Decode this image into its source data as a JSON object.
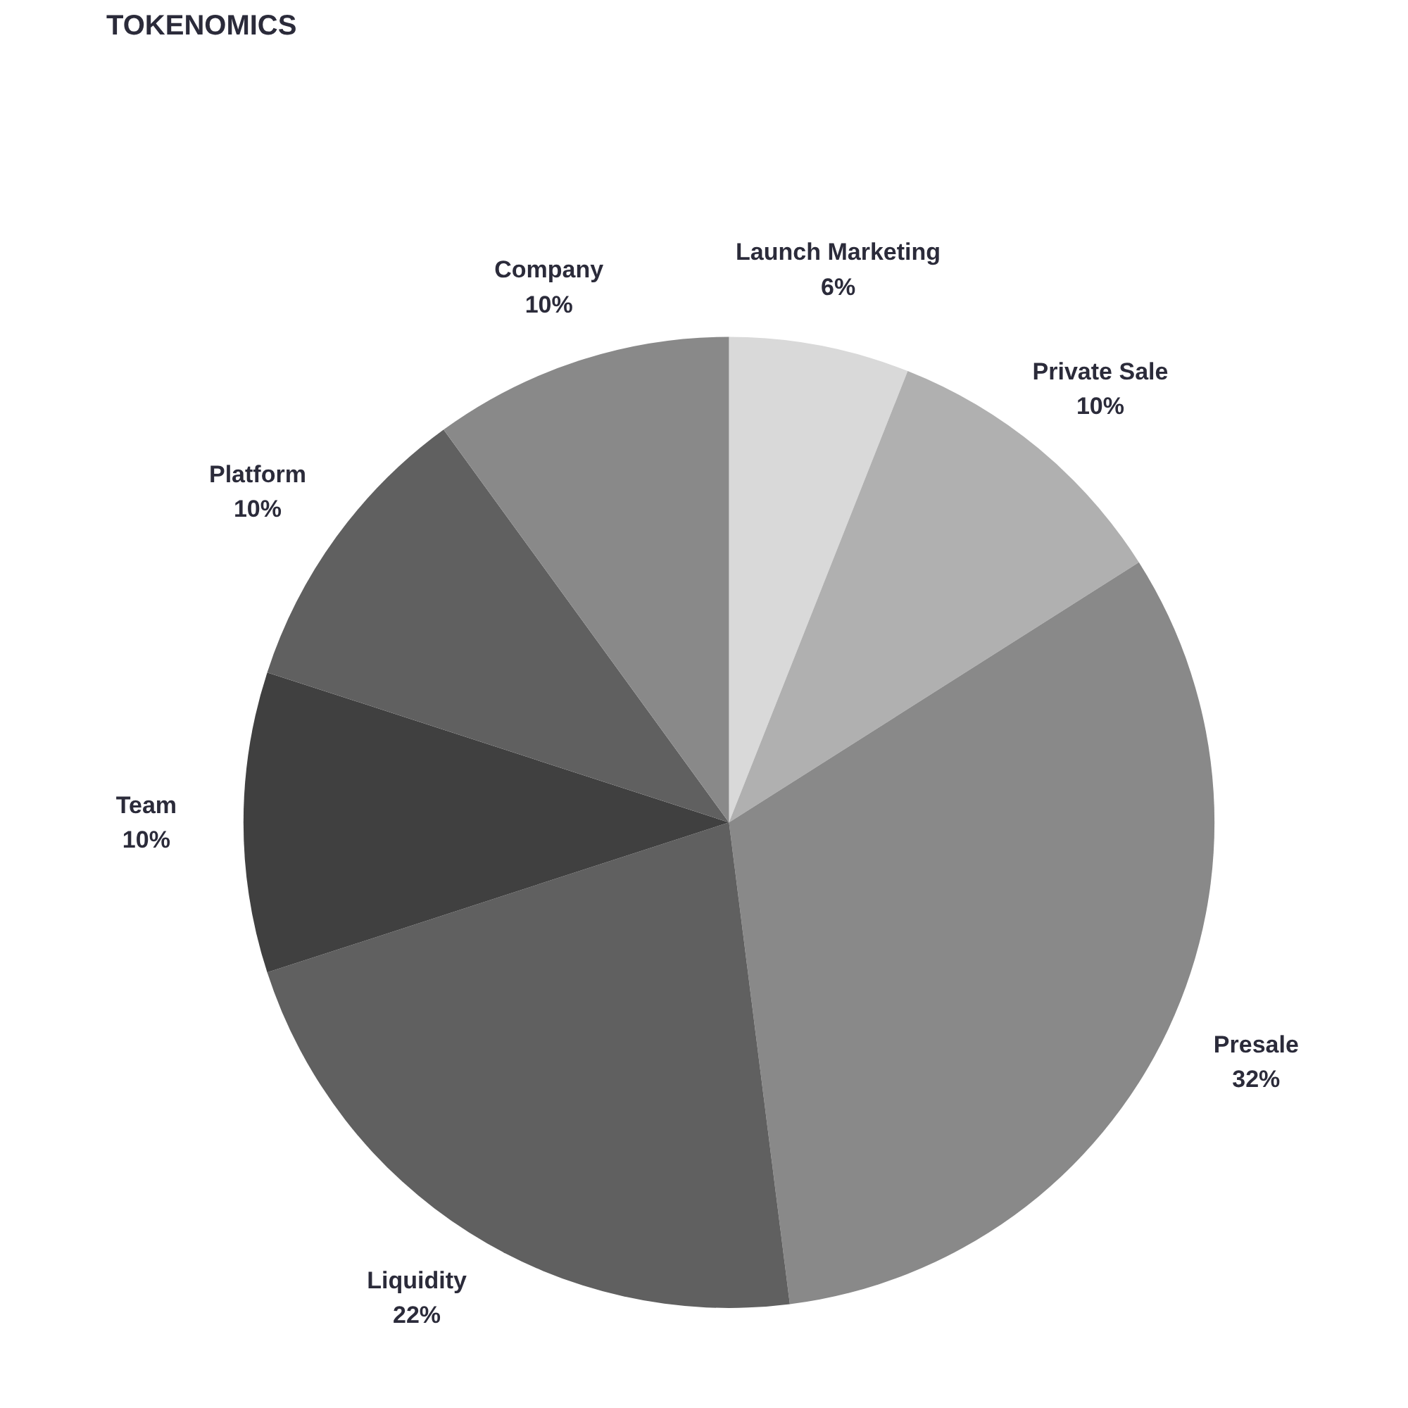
{
  "chart_data": {
    "type": "pie",
    "title": "TOKENOMICS",
    "categories": [
      "Launch Marketing",
      "Private Sale",
      "Presale",
      "Liquidity",
      "Team",
      "Platform",
      "Company"
    ],
    "values": [
      6,
      10,
      32,
      22,
      10,
      10,
      10
    ],
    "value_labels": [
      "6%",
      "10%",
      "32%",
      "22%",
      "10%",
      "10%",
      "10%"
    ],
    "colors": [
      "#d9d9d9",
      "#b0b0b0",
      "#898989",
      "#606060",
      "#404040",
      "#606060",
      "#898989"
    ]
  }
}
